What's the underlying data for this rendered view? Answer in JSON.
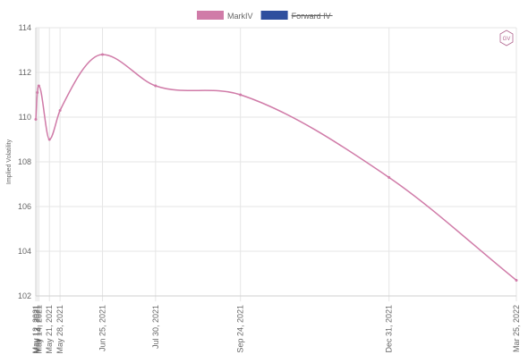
{
  "chart_data": {
    "type": "line",
    "ylabel": "Implied Volatility",
    "ylim": [
      102,
      114
    ],
    "yticks": [
      102,
      104,
      106,
      108,
      110,
      112,
      114
    ],
    "x_dates": [
      "2021-05-12",
      "2021-05-13",
      "2021-05-14",
      "2021-05-21",
      "2021-05-28",
      "2021-06-25",
      "2021-07-30",
      "2021-09-24",
      "2021-12-31",
      "2022-03-25"
    ],
    "x_labels": [
      "May 12, 2021",
      "May 13, 2021",
      "May 14, 2021",
      "May 21, 2021",
      "May 28, 2021",
      "Jun 25, 2021",
      "Jul 30, 2021",
      "Sep 24, 2021",
      "Dec 31, 2021",
      "Mar 25, 2022"
    ],
    "series": [
      {
        "name": "MarkIV",
        "color": "#d07ba8",
        "hidden": false,
        "values": [
          109.9,
          111.1,
          111.4,
          109.0,
          110.3,
          112.8,
          111.4,
          111.0,
          107.3,
          102.7
        ]
      },
      {
        "name": "Forward IV",
        "color": "#2f4f9e",
        "hidden": true,
        "values": []
      }
    ],
    "legend_position": "top-center",
    "grid": true
  },
  "badge": {
    "text": "GV",
    "color": "#b0648e"
  }
}
